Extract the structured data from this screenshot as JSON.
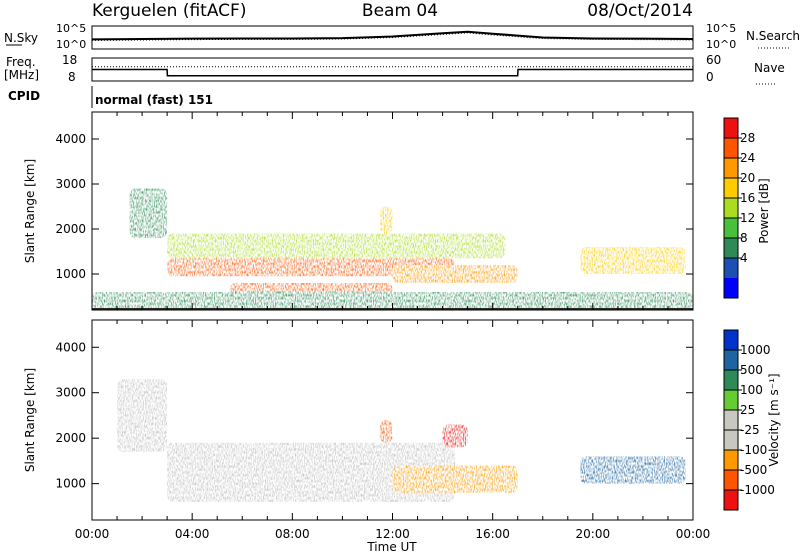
{
  "header": {
    "station": "Kerguelen (fitACF)",
    "beam": "Beam 04",
    "date": "08/Oct/2014"
  },
  "noise_panel": {
    "left_label": "N.Sky",
    "right_label": "N.Search",
    "ticks": [
      "10^5",
      "10^0"
    ]
  },
  "freq_panel": {
    "label_line1": "Freq.",
    "label_line2": "[MHz]",
    "left_ticks": [
      "18",
      "8"
    ],
    "right_label": "Nave",
    "right_ticks": [
      "60",
      "0"
    ]
  },
  "cpid": {
    "label": "CPID",
    "value": "normal (fast) 151"
  },
  "colors": {
    "power_scale": [
      "#0000ff",
      "#1e50b4",
      "#2e8b57",
      "#48c03c",
      "#aadd22",
      "#ffcc00",
      "#ff9900",
      "#ff5500",
      "#ee1111"
    ],
    "velocity_scale": [
      "#0033cc",
      "#1e64a0",
      "#2e8b57",
      "#66cc33",
      "#c8c8c0",
      "#c8c8c0",
      "#ff9900",
      "#ff5500",
      "#ee1111"
    ],
    "ground_scatter": "#bebebe"
  },
  "chart_data": [
    {
      "type": "line",
      "panel": "noise",
      "x": [
        0,
        2,
        4,
        6,
        8,
        10,
        12,
        14,
        15,
        16,
        18,
        20,
        22,
        24
      ],
      "series": [
        {
          "name": "N.Sky",
          "values": [
            0.4,
            0.42,
            0.44,
            0.45,
            0.45,
            0.47,
            0.55,
            0.72,
            0.8,
            0.7,
            0.5,
            0.45,
            0.44,
            0.42
          ]
        },
        {
          "name": "N.Search",
          "values": [
            0.35,
            0.37,
            0.39,
            0.4,
            0.4,
            0.42,
            0.5,
            0.66,
            0.74,
            0.63,
            0.45,
            0.4,
            0.39,
            0.37
          ]
        }
      ],
      "ylim": [
        0,
        1
      ]
    },
    {
      "type": "line",
      "panel": "frequency",
      "x": [
        0,
        3,
        3.01,
        17,
        17.01,
        24
      ],
      "series": [
        {
          "name": "Freq",
          "values": [
            13,
            13,
            10,
            10,
            13,
            13
          ]
        },
        {
          "name": "Nave",
          "values": [
            38,
            38,
            38,
            38,
            38,
            38
          ]
        }
      ],
      "ylim": [
        8,
        18
      ]
    },
    {
      "type": "heatmap",
      "panel": "power",
      "ylabel": "Slant Range [km]",
      "colorbar_label": "Power [dB]",
      "colorbar_ticks": [
        "28",
        "24",
        "20",
        "16",
        "12",
        "8",
        "4"
      ],
      "xlim": [
        0,
        24
      ],
      "ylim": [
        200,
        4600
      ],
      "yticks": [
        1000,
        2000,
        3000,
        4000
      ],
      "regions": [
        {
          "x": [
            3.0,
            14.5
          ],
          "y": [
            950,
            1350
          ],
          "level": 26
        },
        {
          "x": [
            5.5,
            12.0
          ],
          "y": [
            480,
            800
          ],
          "level": 26
        },
        {
          "x": [
            3.0,
            16.5
          ],
          "y": [
            1350,
            1900
          ],
          "level": 15
        },
        {
          "x": [
            12.0,
            17.0
          ],
          "y": [
            800,
            1200
          ],
          "level": 22
        },
        {
          "x": [
            1.5,
            3.0
          ],
          "y": [
            1800,
            2900
          ],
          "level": 9
        },
        {
          "x": [
            11.5,
            12.0
          ],
          "y": [
            1900,
            2500
          ],
          "level": 20
        },
        {
          "x": [
            19.5,
            23.7
          ],
          "y": [
            1000,
            1600
          ],
          "level": 18
        },
        {
          "x": [
            0.0,
            24.0
          ],
          "y": [
            230,
            600
          ],
          "level": 6
        }
      ]
    },
    {
      "type": "heatmap",
      "panel": "velocity",
      "xlabel": "Time UT",
      "ylabel": "Slant Range [km]",
      "colorbar_label": "Velocity [m s⁻¹]",
      "colorbar_ticks": [
        "1000",
        "500",
        "100",
        "25",
        "-25",
        "-100",
        "-500",
        "-1000"
      ],
      "xlim": [
        0,
        24
      ],
      "ylim": [
        200,
        4600
      ],
      "yticks": [
        1000,
        2000,
        3000,
        4000
      ],
      "xticks": [
        "00:00",
        "04:00",
        "08:00",
        "12:00",
        "16:00",
        "20:00",
        "00:00"
      ],
      "regions": [
        {
          "x": [
            3.0,
            14.5
          ],
          "y": [
            600,
            1900
          ],
          "velocity": 0
        },
        {
          "x": [
            1.0,
            3.0
          ],
          "y": [
            1700,
            3300
          ],
          "velocity": 0
        },
        {
          "x": [
            12.0,
            17.0
          ],
          "y": [
            800,
            1400
          ],
          "velocity": -300
        },
        {
          "x": [
            11.5,
            12.0
          ],
          "y": [
            1900,
            2400
          ],
          "velocity": -500
        },
        {
          "x": [
            19.5,
            23.7
          ],
          "y": [
            1000,
            1600
          ],
          "velocity": 400
        },
        {
          "x": [
            14.0,
            15.0
          ],
          "y": [
            1800,
            2300
          ],
          "velocity": -800
        }
      ]
    }
  ]
}
